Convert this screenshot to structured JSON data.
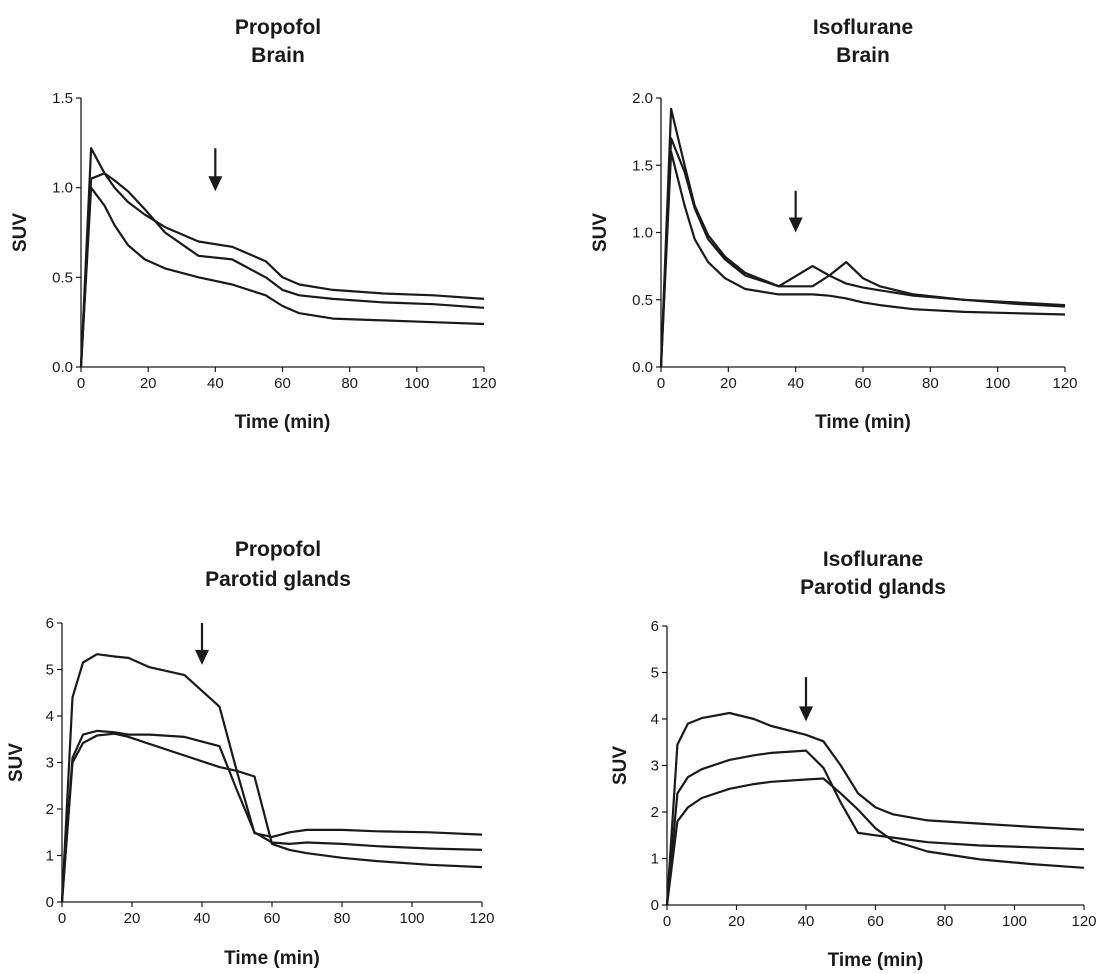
{
  "chart_data": [
    {
      "type": "line",
      "title": [
        "Propofol",
        "Brain"
      ],
      "xlabel": "Time (min)",
      "ylabel": "SUV",
      "xlim": [
        0,
        120
      ],
      "ylim": [
        0,
        1.5
      ],
      "xticks": [
        0,
        20,
        40,
        60,
        80,
        100,
        120
      ],
      "yticks": [
        0,
        0.5,
        1.0,
        1.5
      ],
      "ytick_labels": [
        "0.0",
        "0.5",
        "1.0",
        "1.5"
      ],
      "grid": false,
      "annotations": [
        {
          "type": "arrow",
          "x": 40,
          "y_from": 1.22,
          "y_to": 0.98
        }
      ],
      "series": [
        {
          "x": [
            0,
            3,
            7,
            10,
            14,
            19,
            25,
            35,
            45,
            55,
            60,
            65,
            75,
            90,
            105,
            120
          ],
          "y": [
            0,
            1.22,
            1.08,
            1.0,
            0.92,
            0.85,
            0.78,
            0.7,
            0.67,
            0.59,
            0.5,
            0.46,
            0.43,
            0.41,
            0.4,
            0.38
          ]
        },
        {
          "x": [
            0,
            3,
            7,
            10,
            14,
            19,
            25,
            35,
            45,
            55,
            60,
            65,
            75,
            90,
            105,
            120
          ],
          "y": [
            0,
            1.05,
            1.08,
            1.04,
            0.98,
            0.88,
            0.75,
            0.62,
            0.6,
            0.5,
            0.43,
            0.4,
            0.38,
            0.36,
            0.35,
            0.33
          ]
        },
        {
          "x": [
            0,
            3,
            7,
            10,
            14,
            19,
            25,
            35,
            45,
            55,
            60,
            65,
            75,
            90,
            105,
            120
          ],
          "y": [
            0,
            1.0,
            0.9,
            0.79,
            0.68,
            0.6,
            0.55,
            0.5,
            0.46,
            0.4,
            0.34,
            0.3,
            0.27,
            0.26,
            0.25,
            0.24
          ]
        }
      ]
    },
    {
      "type": "line",
      "title": [
        "Isoflurane",
        "Brain"
      ],
      "xlabel": "Time (min)",
      "ylabel": "SUV",
      "xlim": [
        0,
        120
      ],
      "ylim": [
        0,
        2.0
      ],
      "xticks": [
        0,
        20,
        40,
        60,
        80,
        100,
        120
      ],
      "yticks": [
        0,
        0.5,
        1.0,
        1.5,
        2.0
      ],
      "ytick_labels": [
        "0.0",
        "0.5",
        "1.0",
        "1.5",
        "2.0"
      ],
      "grid": false,
      "annotations": [
        {
          "type": "arrow",
          "x": 40,
          "y_from": 1.31,
          "y_to": 1.0
        }
      ],
      "series": [
        {
          "x": [
            0,
            3,
            7,
            10,
            14,
            19,
            25,
            35,
            45,
            50,
            55,
            60,
            65,
            75,
            90,
            105,
            120
          ],
          "y": [
            0,
            1.92,
            1.5,
            1.2,
            0.98,
            0.82,
            0.7,
            0.6,
            0.75,
            0.68,
            0.62,
            0.59,
            0.57,
            0.53,
            0.5,
            0.48,
            0.46
          ]
        },
        {
          "x": [
            0,
            3,
            7,
            10,
            14,
            19,
            25,
            35,
            45,
            50,
            55,
            60,
            65,
            75,
            90,
            105,
            120
          ],
          "y": [
            0,
            1.7,
            1.45,
            1.18,
            0.95,
            0.8,
            0.68,
            0.6,
            0.6,
            0.68,
            0.78,
            0.66,
            0.6,
            0.54,
            0.5,
            0.47,
            0.45
          ]
        },
        {
          "x": [
            0,
            3,
            7,
            10,
            14,
            19,
            25,
            35,
            45,
            50,
            55,
            60,
            65,
            75,
            90,
            105,
            120
          ],
          "y": [
            0,
            1.6,
            1.2,
            0.95,
            0.78,
            0.66,
            0.58,
            0.54,
            0.54,
            0.53,
            0.51,
            0.48,
            0.46,
            0.43,
            0.41,
            0.4,
            0.39
          ]
        }
      ]
    },
    {
      "type": "line",
      "title": [
        "Propofol",
        "Parotid glands"
      ],
      "xlabel": "Time (min)",
      "ylabel": "SUV",
      "xlim": [
        0,
        120
      ],
      "ylim": [
        0,
        6
      ],
      "xticks": [
        0,
        20,
        40,
        60,
        80,
        100,
        120
      ],
      "yticks": [
        0,
        1,
        2,
        3,
        4,
        5,
        6
      ],
      "ytick_labels": [
        "0",
        "1",
        "2",
        "3",
        "4",
        "5",
        "6"
      ],
      "grid": false,
      "annotations": [
        {
          "type": "arrow",
          "x": 40,
          "y_from": 6.0,
          "y_to": 5.1
        }
      ],
      "series": [
        {
          "x": [
            0,
            3,
            6,
            10,
            15,
            19,
            25,
            35,
            45,
            50,
            55,
            60,
            65,
            70,
            80,
            90,
            105,
            120
          ],
          "y": [
            0,
            4.4,
            5.15,
            5.33,
            5.28,
            5.25,
            5.05,
            4.88,
            4.2,
            2.8,
            1.48,
            1.4,
            1.5,
            1.55,
            1.55,
            1.52,
            1.5,
            1.45
          ]
        },
        {
          "x": [
            0,
            3,
            6,
            10,
            15,
            19,
            25,
            35,
            45,
            50,
            55,
            60,
            65,
            70,
            80,
            90,
            105,
            120
          ],
          "y": [
            0,
            3.1,
            3.6,
            3.68,
            3.65,
            3.6,
            3.6,
            3.55,
            3.35,
            2.4,
            1.5,
            1.28,
            1.25,
            1.28,
            1.25,
            1.2,
            1.15,
            1.12
          ]
        },
        {
          "x": [
            0,
            3,
            6,
            10,
            15,
            19,
            25,
            35,
            45,
            50,
            55,
            60,
            65,
            70,
            80,
            90,
            105,
            120
          ],
          "y": [
            0,
            3.0,
            3.42,
            3.58,
            3.62,
            3.55,
            3.4,
            3.15,
            2.9,
            2.82,
            2.7,
            1.25,
            1.12,
            1.05,
            0.95,
            0.88,
            0.8,
            0.75
          ]
        }
      ]
    },
    {
      "type": "line",
      "title": [
        "Isoflurane",
        "Parotid glands"
      ],
      "xlabel": "Time (min)",
      "ylabel": "SUV",
      "xlim": [
        0,
        120
      ],
      "ylim": [
        0,
        6
      ],
      "xticks": [
        0,
        20,
        40,
        60,
        80,
        100,
        120
      ],
      "yticks": [
        0,
        1,
        2,
        3,
        4,
        5,
        6
      ],
      "ytick_labels": [
        "0",
        "1",
        "2",
        "3",
        "4",
        "5",
        "6"
      ],
      "grid": false,
      "annotations": [
        {
          "type": "arrow",
          "x": 40,
          "y_from": 4.9,
          "y_to": 3.95
        }
      ],
      "series": [
        {
          "x": [
            0,
            3,
            6,
            10,
            18,
            25,
            30,
            40,
            45,
            50,
            55,
            60,
            65,
            75,
            90,
            105,
            120
          ],
          "y": [
            0,
            3.45,
            3.9,
            4.02,
            4.13,
            4.0,
            3.85,
            3.66,
            3.52,
            3.0,
            2.4,
            2.1,
            1.95,
            1.82,
            1.75,
            1.68,
            1.62
          ]
        },
        {
          "x": [
            0,
            3,
            6,
            10,
            18,
            25,
            30,
            40,
            45,
            50,
            55,
            60,
            65,
            75,
            90,
            105,
            120
          ],
          "y": [
            0,
            2.4,
            2.75,
            2.92,
            3.12,
            3.22,
            3.27,
            3.32,
            2.95,
            2.2,
            1.55,
            1.5,
            1.45,
            1.35,
            1.28,
            1.24,
            1.2
          ]
        },
        {
          "x": [
            0,
            3,
            6,
            10,
            18,
            25,
            30,
            40,
            45,
            50,
            55,
            60,
            65,
            75,
            90,
            105,
            120
          ],
          "y": [
            0,
            1.8,
            2.1,
            2.3,
            2.5,
            2.6,
            2.65,
            2.7,
            2.72,
            2.4,
            2.05,
            1.65,
            1.38,
            1.15,
            0.98,
            0.88,
            0.8
          ]
        }
      ]
    }
  ]
}
